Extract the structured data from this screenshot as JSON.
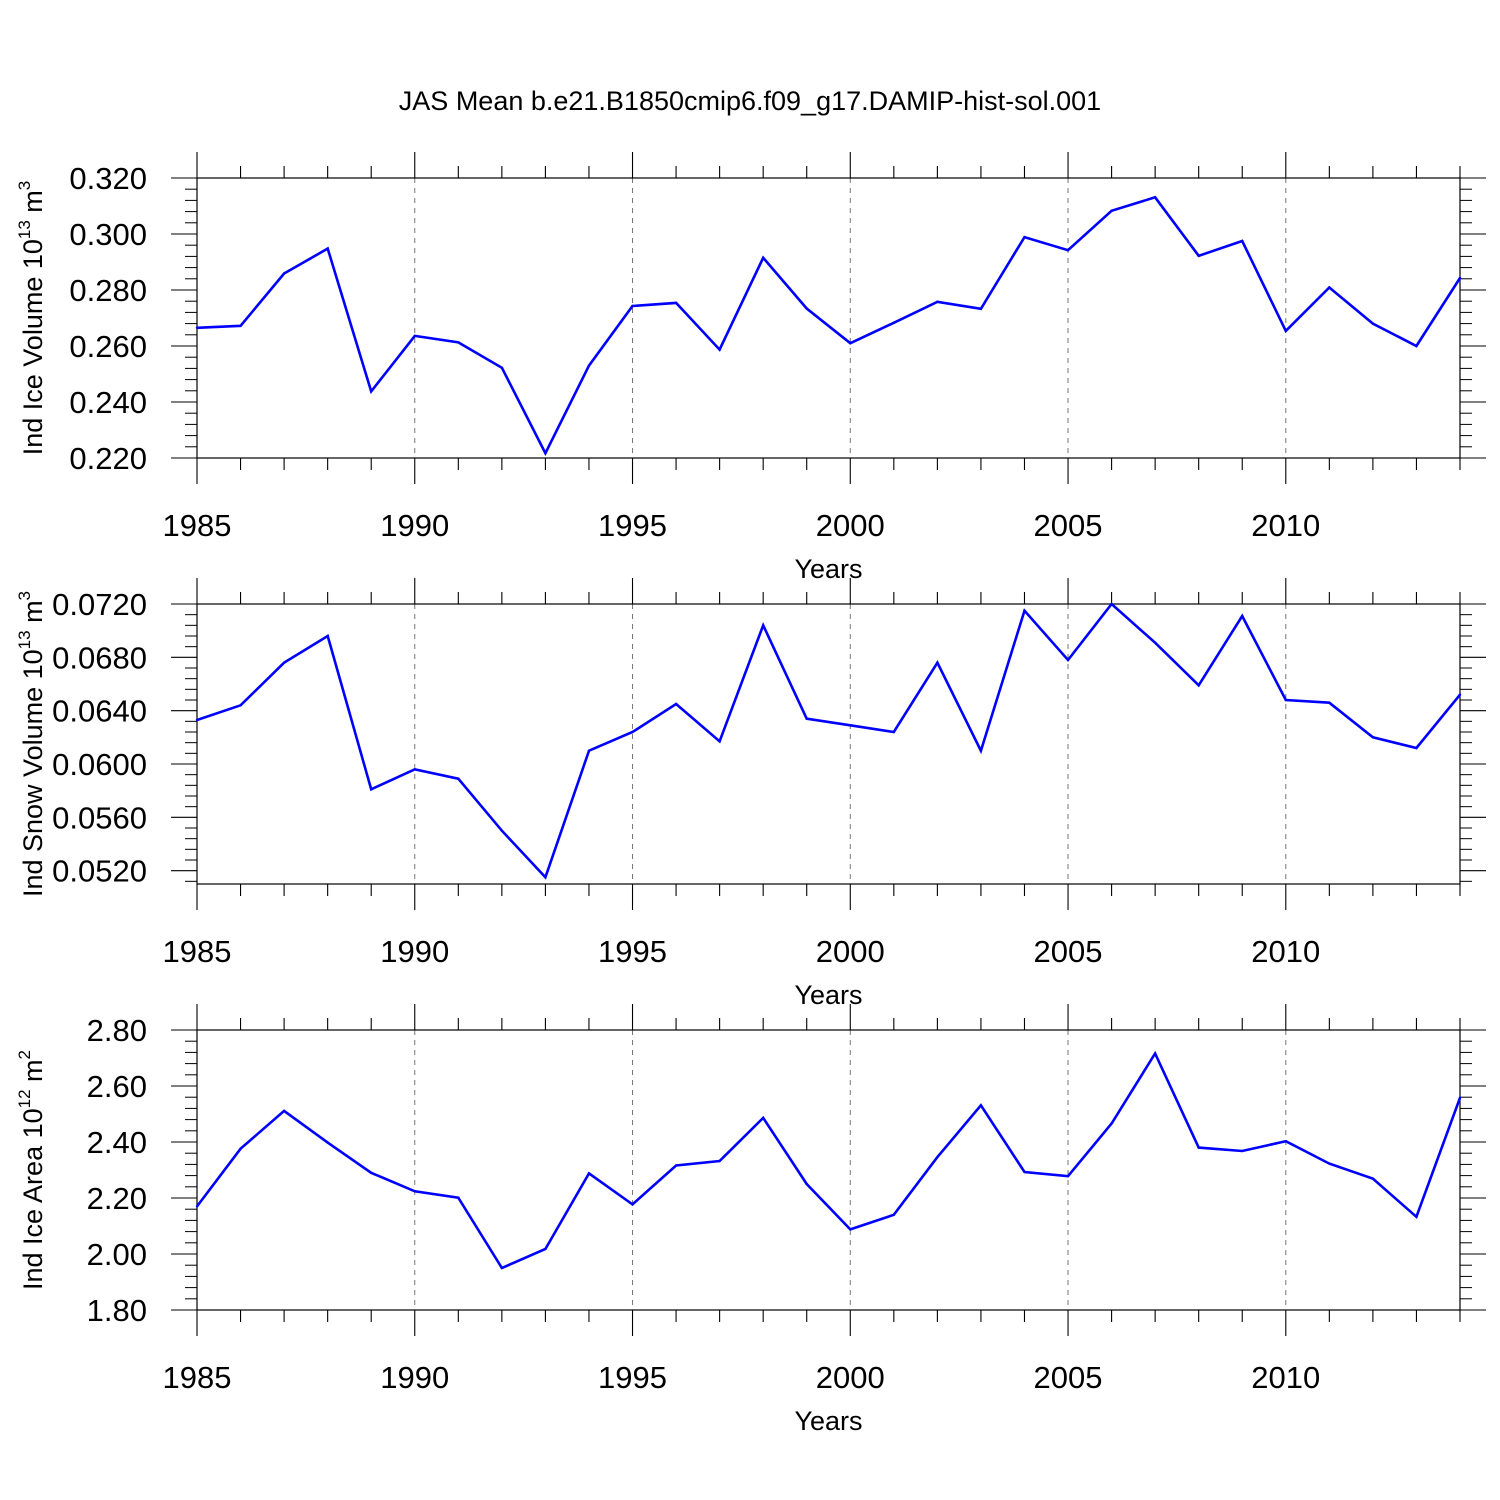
{
  "figure": {
    "title": "JAS Mean b.e21.B1850cmip6.f09_g17.DAMIP-hist-sol.001",
    "line_color": "#0000ff"
  },
  "chart_data": [
    {
      "type": "line",
      "title": "",
      "xlabel": "Years",
      "ylabel": "Ind Ice Volume",
      "ylabel_scale_base": "10",
      "ylabel_scale_exp": "13",
      "ylabel_unit": "m",
      "ylabel_unit_exp": "3",
      "xlim": [
        1985,
        2014
      ],
      "ylim": [
        0.22,
        0.32
      ],
      "xticks": [
        1985,
        1990,
        1995,
        2000,
        2005,
        2010
      ],
      "xtick_labels": [
        "1985",
        "1990",
        "1995",
        "2000",
        "2005",
        "2010"
      ],
      "yticks": [
        0.22,
        0.24,
        0.26,
        0.28,
        0.3,
        0.32
      ],
      "ytick_labels": [
        "0.220",
        "0.240",
        "0.260",
        "0.280",
        "0.300",
        "0.320"
      ],
      "yminor_step": 0.004,
      "x": [
        1985,
        1986,
        1987,
        1988,
        1989,
        1990,
        1991,
        1992,
        1993,
        1994,
        1995,
        1996,
        1997,
        1998,
        1999,
        2000,
        2001,
        2002,
        2003,
        2004,
        2005,
        2006,
        2007,
        2008,
        2009,
        2010,
        2011,
        2012,
        2013,
        2014
      ],
      "series": [
        {
          "name": "Ind Ice Volume",
          "values": [
            0.2665,
            0.2672,
            0.2859,
            0.2948,
            0.2438,
            0.2636,
            0.2613,
            0.2522,
            0.2217,
            0.253,
            0.2743,
            0.2754,
            0.2587,
            0.2915,
            0.2734,
            0.261,
            0.2683,
            0.2758,
            0.2733,
            0.2989,
            0.2942,
            0.3083,
            0.3131,
            0.2922,
            0.2975,
            0.2654,
            0.2809,
            0.268,
            0.26,
            0.2843
          ]
        }
      ]
    },
    {
      "type": "line",
      "title": "",
      "xlabel": "Years",
      "ylabel": "Ind Snow Volume",
      "ylabel_scale_base": "10",
      "ylabel_scale_exp": "13",
      "ylabel_unit": "m",
      "ylabel_unit_exp": "3",
      "xlim": [
        1985,
        2014
      ],
      "ylim": [
        0.051,
        0.072
      ],
      "xticks": [
        1985,
        1990,
        1995,
        2000,
        2005,
        2010
      ],
      "xtick_labels": [
        "1985",
        "1990",
        "1995",
        "2000",
        "2005",
        "2010"
      ],
      "yticks": [
        0.052,
        0.056,
        0.06,
        0.064,
        0.068,
        0.072
      ],
      "ytick_labels": [
        "0.0520",
        "0.0560",
        "0.0600",
        "0.0640",
        "0.0680",
        "0.0720"
      ],
      "yminor_step": 0.0008,
      "x": [
        1985,
        1986,
        1987,
        1988,
        1989,
        1990,
        1991,
        1992,
        1993,
        1994,
        1995,
        1996,
        1997,
        1998,
        1999,
        2000,
        2001,
        2002,
        2003,
        2004,
        2005,
        2006,
        2007,
        2008,
        2009,
        2010,
        2011,
        2012,
        2013,
        2014
      ],
      "series": [
        {
          "name": "Ind Snow Volume",
          "values": [
            0.0633,
            0.0644,
            0.0676,
            0.0696,
            0.0581,
            0.0596,
            0.0589,
            0.055,
            0.0515,
            0.061,
            0.0624,
            0.0645,
            0.0617,
            0.0704,
            0.0634,
            0.0629,
            0.0624,
            0.0676,
            0.061,
            0.0715,
            0.0678,
            0.072,
            0.0691,
            0.0659,
            0.0711,
            0.0648,
            0.0646,
            0.062,
            0.0612,
            0.0652
          ]
        }
      ]
    },
    {
      "type": "line",
      "title": "",
      "xlabel": "Years",
      "ylabel": "Ind Ice Area",
      "ylabel_scale_base": "10",
      "ylabel_scale_exp": "12",
      "ylabel_unit": "m",
      "ylabel_unit_exp": "2",
      "xlim": [
        1985,
        2014
      ],
      "ylim": [
        1.8,
        2.8
      ],
      "xticks": [
        1985,
        1990,
        1995,
        2000,
        2005,
        2010
      ],
      "xtick_labels": [
        "1985",
        "1990",
        "1995",
        "2000",
        "2005",
        "2010"
      ],
      "yticks": [
        1.8,
        2.0,
        2.2,
        2.4,
        2.6,
        2.8
      ],
      "ytick_labels": [
        "1.80",
        "2.00",
        "2.20",
        "2.40",
        "2.60",
        "2.80"
      ],
      "yminor_step": 0.04,
      "x": [
        1985,
        1986,
        1987,
        1988,
        1989,
        1990,
        1991,
        1992,
        1993,
        1994,
        1995,
        1996,
        1997,
        1998,
        1999,
        2000,
        2001,
        2002,
        2003,
        2004,
        2005,
        2006,
        2007,
        2008,
        2009,
        2010,
        2011,
        2012,
        2013,
        2014
      ],
      "series": [
        {
          "name": "Ind Ice Area",
          "values": [
            2.17,
            2.376,
            2.511,
            2.398,
            2.29,
            2.224,
            2.201,
            1.95,
            2.018,
            2.288,
            2.177,
            2.316,
            2.332,
            2.486,
            2.25,
            2.088,
            2.14,
            2.346,
            2.531,
            2.293,
            2.278,
            2.466,
            2.716,
            2.38,
            2.368,
            2.403,
            2.323,
            2.269,
            2.133,
            2.558
          ]
        }
      ]
    }
  ]
}
